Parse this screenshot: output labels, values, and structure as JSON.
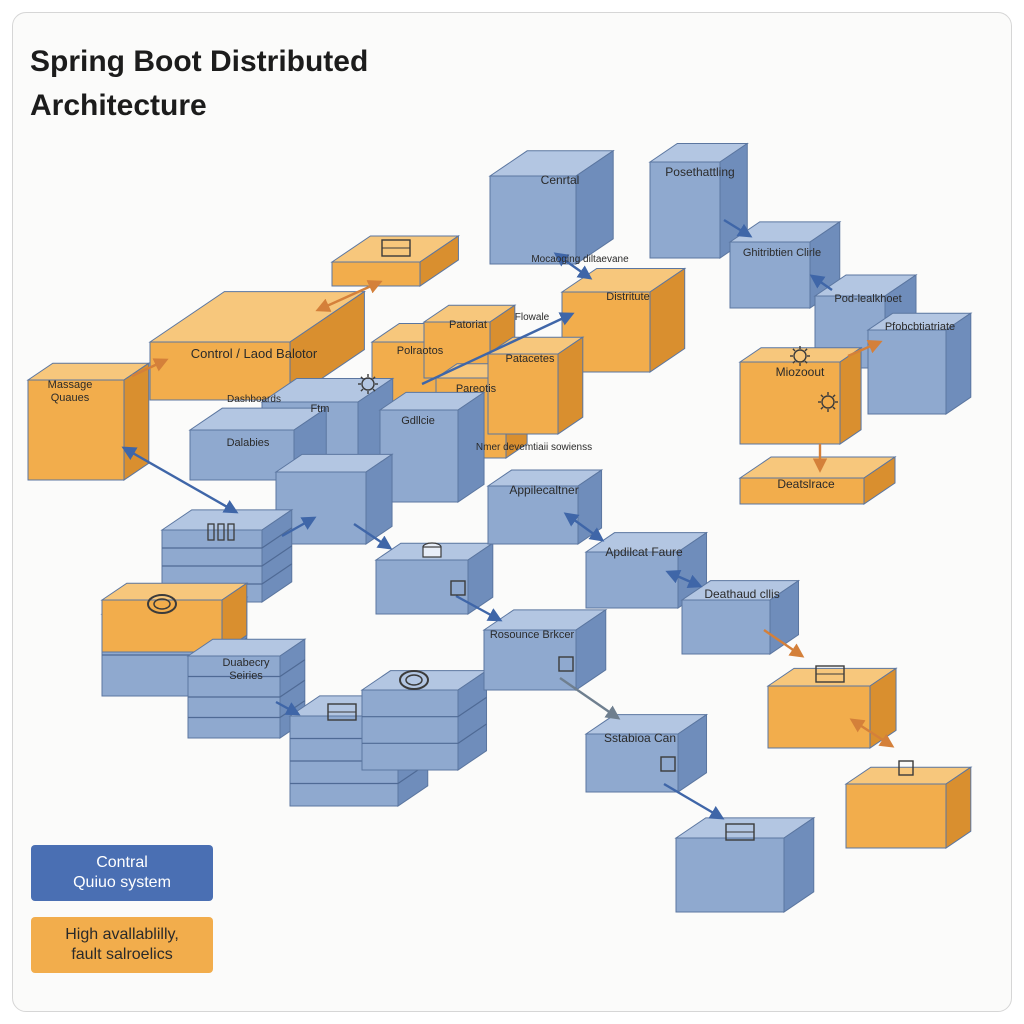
{
  "title": "Spring Boot Distributed\nArchitecture",
  "colors": {
    "blue_front": "#8fa9cf",
    "blue_top": "#b3c6e2",
    "blue_side": "#6f8dbb",
    "orange_front": "#f2ad4c",
    "orange_top": "#f7c77c",
    "orange_side": "#d98f2f",
    "arrow_blue": "#3f66a8",
    "arrow_orange": "#d4803a",
    "arrow_gray": "#6f7f8f"
  },
  "nodes": {
    "central_top": "Cenrtal",
    "posthandling": "Posethattling",
    "distributed_cache": "Ghitribtien Clirle",
    "pod_health": "Pod-lealkhoet",
    "probabilitate": "Pfobcbtiatriate",
    "microservice": "Miozoout",
    "database_right": "Deatslrace",
    "distributed_center": "Distritute",
    "messaging_label": "Mocaoging diltaevane",
    "flowable_label": "Flowale",
    "central_load_balancer": "Control / Laod Balotor",
    "message_queue": "Massage\nQuaues",
    "dashboard_label": "Dashboards",
    "orange_a": "Polraotos",
    "orange_b": "Patoriat",
    "orange_c": "Pareotis",
    "orange_d": "Patacetes",
    "blue_topmid": "Ftm",
    "blue_left": "Dalabies",
    "blue_right": "Gdllcie",
    "dependency_label": "Nmer devemtiaii sowienss",
    "app_gateway": "Appilecaltner",
    "app_flow": "Apdilcat Faure",
    "database_cluster": "Deathaud cllis",
    "resource_broker": "Rosounce Brkcer",
    "database_stack": "Duabecry\nSeiries",
    "stateless_gateway": "Sstabioa Can"
  },
  "legend": {
    "central_queue": "Contral\nQuiuo system",
    "high_availability": "High avallablilly,\nfault salroelics"
  }
}
